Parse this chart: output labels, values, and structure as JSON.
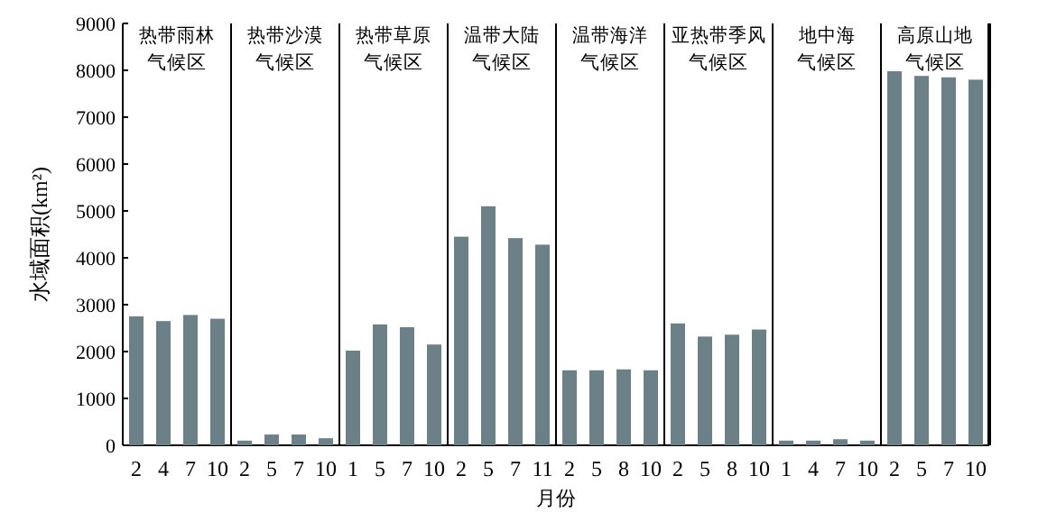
{
  "chart_data": [
    {
      "type": "bar",
      "title": "热带雨林",
      "subtitle": "气候区",
      "ylabel": "水域面积(km²)",
      "categories": [
        "2",
        "4",
        "7",
        "10"
      ],
      "values": [
        2750,
        2650,
        2780,
        2700
      ],
      "color": "#6b8087",
      "ylim": [
        0,
        9000
      ],
      "yticks": [
        0,
        1000,
        2000,
        3000,
        4000,
        5000,
        6000,
        7000,
        8000,
        9000
      ]
    },
    {
      "type": "bar",
      "title": "热带沙漠",
      "subtitle": "气候区",
      "categories": [
        "2",
        "5",
        "7",
        "10"
      ],
      "values": [
        100,
        230,
        230,
        150
      ],
      "color": "#6b8087",
      "ylim": [
        0,
        9000
      ],
      "tick_labels": "x"
    },
    {
      "type": "bar",
      "title": "热带草原",
      "subtitle": "气候区",
      "categories": [
        "1",
        "5",
        "7",
        "10"
      ],
      "values": [
        2020,
        2580,
        2520,
        2150
      ],
      "color": "#6b8087",
      "ylim": [
        0,
        9000
      ],
      "tick_labels": "x"
    },
    {
      "type": "bar",
      "title": "温带大陆",
      "subtitle": "气候区",
      "categories": [
        "2",
        "5",
        "7",
        "11"
      ],
      "values": [
        4450,
        5100,
        4420,
        4280
      ],
      "color": "#6b8087",
      "ylim": [
        0,
        9000
      ],
      "tick_labels": "x"
    },
    {
      "type": "bar",
      "title": "温带海洋",
      "subtitle": "气候区",
      "xlabel": "月份",
      "categories": [
        "2",
        "5",
        "8",
        "10"
      ],
      "values": [
        1600,
        1600,
        1620,
        1600
      ],
      "color": "#6b8087",
      "ylim": [
        0,
        9000
      ],
      "tick_labels": "x"
    },
    {
      "type": "bar",
      "title": "亚热带季风",
      "subtitle": "气候区",
      "categories": [
        "2",
        "5",
        "8",
        "10"
      ],
      "values": [
        2600,
        2320,
        2360,
        2470
      ],
      "color": "#6b8087",
      "ylim": [
        0,
        9000
      ],
      "tick_labels": "x"
    },
    {
      "type": "bar",
      "title": "地中海",
      "subtitle": "气候区",
      "categories": [
        "1",
        "4",
        "7",
        "10"
      ],
      "values": [
        100,
        100,
        130,
        100
      ],
      "color": "#6b8087",
      "ylim": [
        0,
        9000
      ],
      "tick_labels": "x"
    },
    {
      "type": "bar",
      "title": "高原山地",
      "subtitle": "气候区",
      "categories": [
        "2",
        "5",
        "7",
        "10"
      ],
      "values": [
        7980,
        7880,
        7850,
        7800
      ],
      "color": "#6b8087",
      "ylim": [
        0,
        9000
      ],
      "tick_labels": "x"
    }
  ]
}
